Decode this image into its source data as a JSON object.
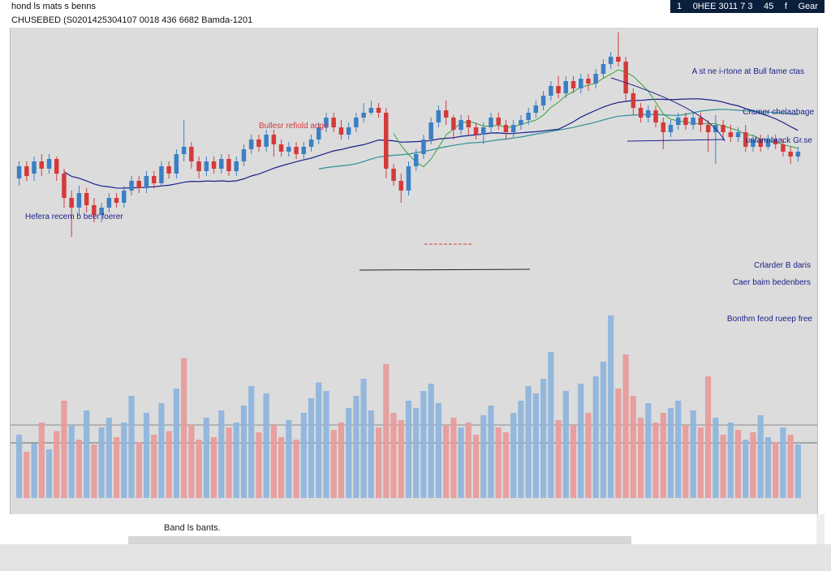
{
  "header": {
    "title": "hond ls mats s benns",
    "subtitle": "CHUSEBED (S0201425304107 0018 436 6682 Bamda-1201",
    "topbar_items": [
      "1",
      "0HEE 3011 7 3",
      "45",
      "f",
      "Gear"
    ]
  },
  "footer": {
    "label": "Band ls bants."
  },
  "colors": {
    "up": "#3b7fc4",
    "down": "#d43a3a",
    "ma_dark": "#1b1f8a",
    "ma_teal": "#2f8f9a",
    "ma_green": "#3aa03a",
    "background": "#dcdcdc"
  },
  "chart_data": {
    "type": "candlestick",
    "price_range": [
      0,
      100
    ],
    "volume_range": [
      0,
      100
    ],
    "grid": false,
    "annotations": [
      {
        "text": "Bullesr refiold ange",
        "color": "#d43a3a"
      },
      {
        "text": "Hefera recem b beer foerer",
        "color": "#1b1f8a"
      },
      {
        "text": "A st ne i-rtone at Bull fame ctas",
        "color": "#1b1f8a"
      },
      {
        "text": "Cramer chelaabage",
        "color": "#1b1f8a"
      },
      {
        "text": "unfarmbrack Gr.se",
        "color": "#1b1f8a"
      },
      {
        "text": "Crlarder B daris",
        "color": "#1b1f8a"
      },
      {
        "text": "Caer baim bedenbers",
        "color": "#1b1f8a"
      },
      {
        "text": "Bonthm feod rueep free",
        "color": "#1b1f8a"
      }
    ],
    "candles": [
      {
        "o": 48,
        "c": 53,
        "h": 55,
        "l": 45
      },
      {
        "o": 53,
        "c": 49,
        "h": 55,
        "l": 47
      },
      {
        "o": 50,
        "c": 55,
        "h": 57,
        "l": 47
      },
      {
        "o": 55,
        "c": 52,
        "h": 58,
        "l": 49
      },
      {
        "o": 52,
        "c": 56,
        "h": 58,
        "l": 50
      },
      {
        "o": 56,
        "c": 50,
        "h": 57,
        "l": 47
      },
      {
        "o": 50,
        "c": 40,
        "h": 52,
        "l": 36
      },
      {
        "o": 40,
        "c": 36,
        "h": 43,
        "l": 24
      },
      {
        "o": 36,
        "c": 42,
        "h": 45,
        "l": 33
      },
      {
        "o": 42,
        "c": 37,
        "h": 44,
        "l": 34
      },
      {
        "o": 37,
        "c": 33,
        "h": 40,
        "l": 30
      },
      {
        "o": 33,
        "c": 36,
        "h": 38,
        "l": 30
      },
      {
        "o": 36,
        "c": 40,
        "h": 42,
        "l": 34
      },
      {
        "o": 40,
        "c": 38,
        "h": 42,
        "l": 36
      },
      {
        "o": 38,
        "c": 43,
        "h": 45,
        "l": 36
      },
      {
        "o": 43,
        "c": 47,
        "h": 49,
        "l": 41
      },
      {
        "o": 47,
        "c": 44,
        "h": 49,
        "l": 42
      },
      {
        "o": 44,
        "c": 49,
        "h": 51,
        "l": 42
      },
      {
        "o": 49,
        "c": 46,
        "h": 51,
        "l": 44
      },
      {
        "o": 46,
        "c": 53,
        "h": 55,
        "l": 45
      },
      {
        "o": 53,
        "c": 50,
        "h": 55,
        "l": 48
      },
      {
        "o": 50,
        "c": 58,
        "h": 60,
        "l": 48
      },
      {
        "o": 58,
        "c": 61,
        "h": 72,
        "l": 55
      },
      {
        "o": 61,
        "c": 55,
        "h": 63,
        "l": 52
      },
      {
        "o": 55,
        "c": 51,
        "h": 57,
        "l": 48
      },
      {
        "o": 51,
        "c": 55,
        "h": 57,
        "l": 49
      },
      {
        "o": 55,
        "c": 52,
        "h": 57,
        "l": 50
      },
      {
        "o": 52,
        "c": 56,
        "h": 58,
        "l": 50
      },
      {
        "o": 56,
        "c": 51,
        "h": 58,
        "l": 49
      },
      {
        "o": 51,
        "c": 55,
        "h": 57,
        "l": 49
      },
      {
        "o": 55,
        "c": 60,
        "h": 62,
        "l": 53
      },
      {
        "o": 60,
        "c": 64,
        "h": 66,
        "l": 58
      },
      {
        "o": 64,
        "c": 61,
        "h": 66,
        "l": 59
      },
      {
        "o": 61,
        "c": 66,
        "h": 68,
        "l": 59
      },
      {
        "o": 66,
        "c": 62,
        "h": 68,
        "l": 57
      },
      {
        "o": 62,
        "c": 59,
        "h": 64,
        "l": 57
      },
      {
        "o": 59,
        "c": 61,
        "h": 63,
        "l": 57
      },
      {
        "o": 61,
        "c": 58,
        "h": 63,
        "l": 56
      },
      {
        "o": 58,
        "c": 61,
        "h": 63,
        "l": 56
      },
      {
        "o": 61,
        "c": 64,
        "h": 66,
        "l": 59
      },
      {
        "o": 64,
        "c": 69,
        "h": 71,
        "l": 62
      },
      {
        "o": 69,
        "c": 73,
        "h": 75,
        "l": 67
      },
      {
        "o": 73,
        "c": 69,
        "h": 75,
        "l": 67
      },
      {
        "o": 69,
        "c": 66,
        "h": 72,
        "l": 64
      },
      {
        "o": 66,
        "c": 69,
        "h": 71,
        "l": 64
      },
      {
        "o": 69,
        "c": 73,
        "h": 75,
        "l": 67
      },
      {
        "o": 73,
        "c": 75,
        "h": 79,
        "l": 71
      },
      {
        "o": 75,
        "c": 77,
        "h": 80,
        "l": 74
      },
      {
        "o": 77,
        "c": 75,
        "h": 79,
        "l": 73
      },
      {
        "o": 75,
        "c": 52,
        "h": 77,
        "l": 48
      },
      {
        "o": 52,
        "c": 47,
        "h": 54,
        "l": 45
      },
      {
        "o": 47,
        "c": 43,
        "h": 50,
        "l": 38
      },
      {
        "o": 43,
        "c": 53,
        "h": 55,
        "l": 41
      },
      {
        "o": 53,
        "c": 58,
        "h": 60,
        "l": 51
      },
      {
        "o": 58,
        "c": 64,
        "h": 66,
        "l": 56
      },
      {
        "o": 64,
        "c": 71,
        "h": 73,
        "l": 62
      },
      {
        "o": 71,
        "c": 76,
        "h": 78,
        "l": 69
      },
      {
        "o": 76,
        "c": 73,
        "h": 80,
        "l": 70
      },
      {
        "o": 73,
        "c": 68,
        "h": 74,
        "l": 64
      },
      {
        "o": 68,
        "c": 72,
        "h": 74,
        "l": 66
      },
      {
        "o": 72,
        "c": 69,
        "h": 74,
        "l": 66
      },
      {
        "o": 69,
        "c": 66,
        "h": 71,
        "l": 64
      },
      {
        "o": 66,
        "c": 69,
        "h": 71,
        "l": 62
      },
      {
        "o": 69,
        "c": 73,
        "h": 75,
        "l": 67
      },
      {
        "o": 73,
        "c": 70,
        "h": 75,
        "l": 68
      },
      {
        "o": 70,
        "c": 67,
        "h": 72,
        "l": 64
      },
      {
        "o": 67,
        "c": 70,
        "h": 72,
        "l": 65
      },
      {
        "o": 70,
        "c": 72,
        "h": 74,
        "l": 68
      },
      {
        "o": 72,
        "c": 75,
        "h": 77,
        "l": 70
      },
      {
        "o": 75,
        "c": 78,
        "h": 80,
        "l": 73
      },
      {
        "o": 78,
        "c": 82,
        "h": 84,
        "l": 76
      },
      {
        "o": 82,
        "c": 86,
        "h": 88,
        "l": 80
      },
      {
        "o": 86,
        "c": 83,
        "h": 90,
        "l": 81
      },
      {
        "o": 83,
        "c": 88,
        "h": 90,
        "l": 81
      },
      {
        "o": 88,
        "c": 85,
        "h": 90,
        "l": 83
      },
      {
        "o": 85,
        "c": 89,
        "h": 91,
        "l": 83
      },
      {
        "o": 89,
        "c": 87,
        "h": 91,
        "l": 84
      },
      {
        "o": 87,
        "c": 91,
        "h": 93,
        "l": 85
      },
      {
        "o": 91,
        "c": 95,
        "h": 97,
        "l": 89
      },
      {
        "o": 95,
        "c": 98,
        "h": 100,
        "l": 93
      },
      {
        "o": 98,
        "c": 96,
        "h": 108,
        "l": 94
      },
      {
        "o": 96,
        "c": 83,
        "h": 98,
        "l": 80
      },
      {
        "o": 83,
        "c": 77,
        "h": 85,
        "l": 74
      },
      {
        "o": 77,
        "c": 73,
        "h": 79,
        "l": 71
      },
      {
        "o": 73,
        "c": 76,
        "h": 78,
        "l": 71
      },
      {
        "o": 76,
        "c": 71,
        "h": 78,
        "l": 69
      },
      {
        "o": 71,
        "c": 67,
        "h": 73,
        "l": 60
      },
      {
        "o": 67,
        "c": 70,
        "h": 72,
        "l": 65
      },
      {
        "o": 70,
        "c": 73,
        "h": 75,
        "l": 68
      },
      {
        "o": 73,
        "c": 70,
        "h": 75,
        "l": 68
      },
      {
        "o": 70,
        "c": 73,
        "h": 75,
        "l": 68
      },
      {
        "o": 73,
        "c": 70,
        "h": 75,
        "l": 67
      },
      {
        "o": 70,
        "c": 67,
        "h": 72,
        "l": 59
      },
      {
        "o": 67,
        "c": 70,
        "h": 74,
        "l": 54
      },
      {
        "o": 70,
        "c": 67,
        "h": 72,
        "l": 64
      },
      {
        "o": 67,
        "c": 65,
        "h": 70,
        "l": 63
      },
      {
        "o": 65,
        "c": 67,
        "h": 69,
        "l": 63
      },
      {
        "o": 67,
        "c": 61,
        "h": 70,
        "l": 59
      },
      {
        "o": 61,
        "c": 64,
        "h": 66,
        "l": 59
      },
      {
        "o": 64,
        "c": 61,
        "h": 66,
        "l": 59
      },
      {
        "o": 61,
        "c": 64,
        "h": 66,
        "l": 60
      },
      {
        "o": 64,
        "c": 62,
        "h": 66,
        "l": 60
      },
      {
        "o": 62,
        "c": 59,
        "h": 64,
        "l": 57
      },
      {
        "o": 59,
        "c": 57,
        "h": 61,
        "l": 54
      },
      {
        "o": 57,
        "c": 59,
        "h": 61,
        "l": 55
      }
    ],
    "volume": [
      {
        "v": 52,
        "d": "up"
      },
      {
        "v": 38,
        "d": "down"
      },
      {
        "v": 45,
        "d": "up"
      },
      {
        "v": 62,
        "d": "down"
      },
      {
        "v": 40,
        "d": "up"
      },
      {
        "v": 55,
        "d": "down"
      },
      {
        "v": 80,
        "d": "down"
      },
      {
        "v": 60,
        "d": "up"
      },
      {
        "v": 48,
        "d": "down"
      },
      {
        "v": 72,
        "d": "up"
      },
      {
        "v": 44,
        "d": "down"
      },
      {
        "v": 58,
        "d": "up"
      },
      {
        "v": 66,
        "d": "up"
      },
      {
        "v": 50,
        "d": "down"
      },
      {
        "v": 62,
        "d": "up"
      },
      {
        "v": 84,
        "d": "up"
      },
      {
        "v": 46,
        "d": "down"
      },
      {
        "v": 70,
        "d": "up"
      },
      {
        "v": 52,
        "d": "down"
      },
      {
        "v": 78,
        "d": "up"
      },
      {
        "v": 55,
        "d": "down"
      },
      {
        "v": 90,
        "d": "up"
      },
      {
        "v": 115,
        "d": "down"
      },
      {
        "v": 60,
        "d": "down"
      },
      {
        "v": 48,
        "d": "down"
      },
      {
        "v": 66,
        "d": "up"
      },
      {
        "v": 50,
        "d": "down"
      },
      {
        "v": 72,
        "d": "up"
      },
      {
        "v": 58,
        "d": "down"
      },
      {
        "v": 62,
        "d": "up"
      },
      {
        "v": 76,
        "d": "up"
      },
      {
        "v": 92,
        "d": "up"
      },
      {
        "v": 54,
        "d": "down"
      },
      {
        "v": 86,
        "d": "up"
      },
      {
        "v": 60,
        "d": "down"
      },
      {
        "v": 50,
        "d": "down"
      },
      {
        "v": 64,
        "d": "up"
      },
      {
        "v": 48,
        "d": "down"
      },
      {
        "v": 70,
        "d": "up"
      },
      {
        "v": 82,
        "d": "up"
      },
      {
        "v": 95,
        "d": "up"
      },
      {
        "v": 88,
        "d": "up"
      },
      {
        "v": 56,
        "d": "down"
      },
      {
        "v": 62,
        "d": "down"
      },
      {
        "v": 74,
        "d": "up"
      },
      {
        "v": 84,
        "d": "up"
      },
      {
        "v": 98,
        "d": "up"
      },
      {
        "v": 72,
        "d": "up"
      },
      {
        "v": 58,
        "d": "down"
      },
      {
        "v": 110,
        "d": "down"
      },
      {
        "v": 70,
        "d": "down"
      },
      {
        "v": 64,
        "d": "down"
      },
      {
        "v": 80,
        "d": "up"
      },
      {
        "v": 74,
        "d": "up"
      },
      {
        "v": 88,
        "d": "up"
      },
      {
        "v": 94,
        "d": "up"
      },
      {
        "v": 78,
        "d": "up"
      },
      {
        "v": 60,
        "d": "down"
      },
      {
        "v": 66,
        "d": "down"
      },
      {
        "v": 58,
        "d": "up"
      },
      {
        "v": 62,
        "d": "down"
      },
      {
        "v": 52,
        "d": "down"
      },
      {
        "v": 68,
        "d": "up"
      },
      {
        "v": 76,
        "d": "up"
      },
      {
        "v": 58,
        "d": "down"
      },
      {
        "v": 54,
        "d": "down"
      },
      {
        "v": 70,
        "d": "up"
      },
      {
        "v": 80,
        "d": "up"
      },
      {
        "v": 92,
        "d": "up"
      },
      {
        "v": 86,
        "d": "up"
      },
      {
        "v": 98,
        "d": "up"
      },
      {
        "v": 120,
        "d": "up"
      },
      {
        "v": 64,
        "d": "down"
      },
      {
        "v": 88,
        "d": "up"
      },
      {
        "v": 60,
        "d": "down"
      },
      {
        "v": 94,
        "d": "up"
      },
      {
        "v": 70,
        "d": "down"
      },
      {
        "v": 100,
        "d": "up"
      },
      {
        "v": 112,
        "d": "up"
      },
      {
        "v": 150,
        "d": "up"
      },
      {
        "v": 90,
        "d": "down"
      },
      {
        "v": 118,
        "d": "down"
      },
      {
        "v": 84,
        "d": "down"
      },
      {
        "v": 66,
        "d": "down"
      },
      {
        "v": 78,
        "d": "up"
      },
      {
        "v": 62,
        "d": "down"
      },
      {
        "v": 70,
        "d": "down"
      },
      {
        "v": 74,
        "d": "up"
      },
      {
        "v": 80,
        "d": "up"
      },
      {
        "v": 60,
        "d": "down"
      },
      {
        "v": 72,
        "d": "up"
      },
      {
        "v": 58,
        "d": "down"
      },
      {
        "v": 100,
        "d": "down"
      },
      {
        "v": 66,
        "d": "up"
      },
      {
        "v": 52,
        "d": "down"
      },
      {
        "v": 62,
        "d": "up"
      },
      {
        "v": 56,
        "d": "down"
      },
      {
        "v": 48,
        "d": "up"
      },
      {
        "v": 54,
        "d": "down"
      },
      {
        "v": 68,
        "d": "up"
      },
      {
        "v": 50,
        "d": "up"
      },
      {
        "v": 46,
        "d": "down"
      },
      {
        "v": 58,
        "d": "up"
      },
      {
        "v": 52,
        "d": "down"
      },
      {
        "v": 44,
        "d": "up"
      }
    ]
  }
}
